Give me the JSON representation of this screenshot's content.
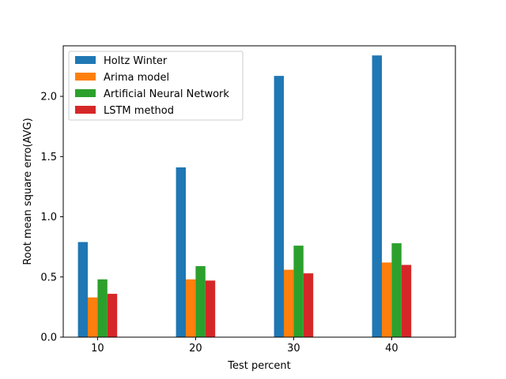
{
  "chart_data": {
    "type": "bar",
    "title": "",
    "xlabel": "Test percent",
    "ylabel": "Root mean square erro(AVG)",
    "categories": [
      "10",
      "20",
      "30",
      "40"
    ],
    "x_ticks": [
      "10",
      "20",
      "30",
      "40"
    ],
    "ylim": [
      0,
      2.42
    ],
    "y_ticks": [
      0.0,
      0.5,
      1.0,
      1.5,
      2.0
    ],
    "y_tick_labels": [
      "0.0",
      "0.5",
      "1.0",
      "1.5",
      "2.0"
    ],
    "grid": false,
    "legend_position": "top-left",
    "series": [
      {
        "name": "Holtz Winter",
        "color": "#1f77b4",
        "values": [
          0.79,
          1.41,
          2.17,
          2.34
        ]
      },
      {
        "name": "Arima model",
        "color": "#ff7f0e",
        "values": [
          0.33,
          0.48,
          0.56,
          0.62
        ]
      },
      {
        "name": "Artificial Neural Network",
        "color": "#2ca02c",
        "values": [
          0.48,
          0.59,
          0.76,
          0.78
        ]
      },
      {
        "name": "LSTM method",
        "color": "#d62728",
        "values": [
          0.36,
          0.47,
          0.53,
          0.6
        ]
      }
    ]
  }
}
